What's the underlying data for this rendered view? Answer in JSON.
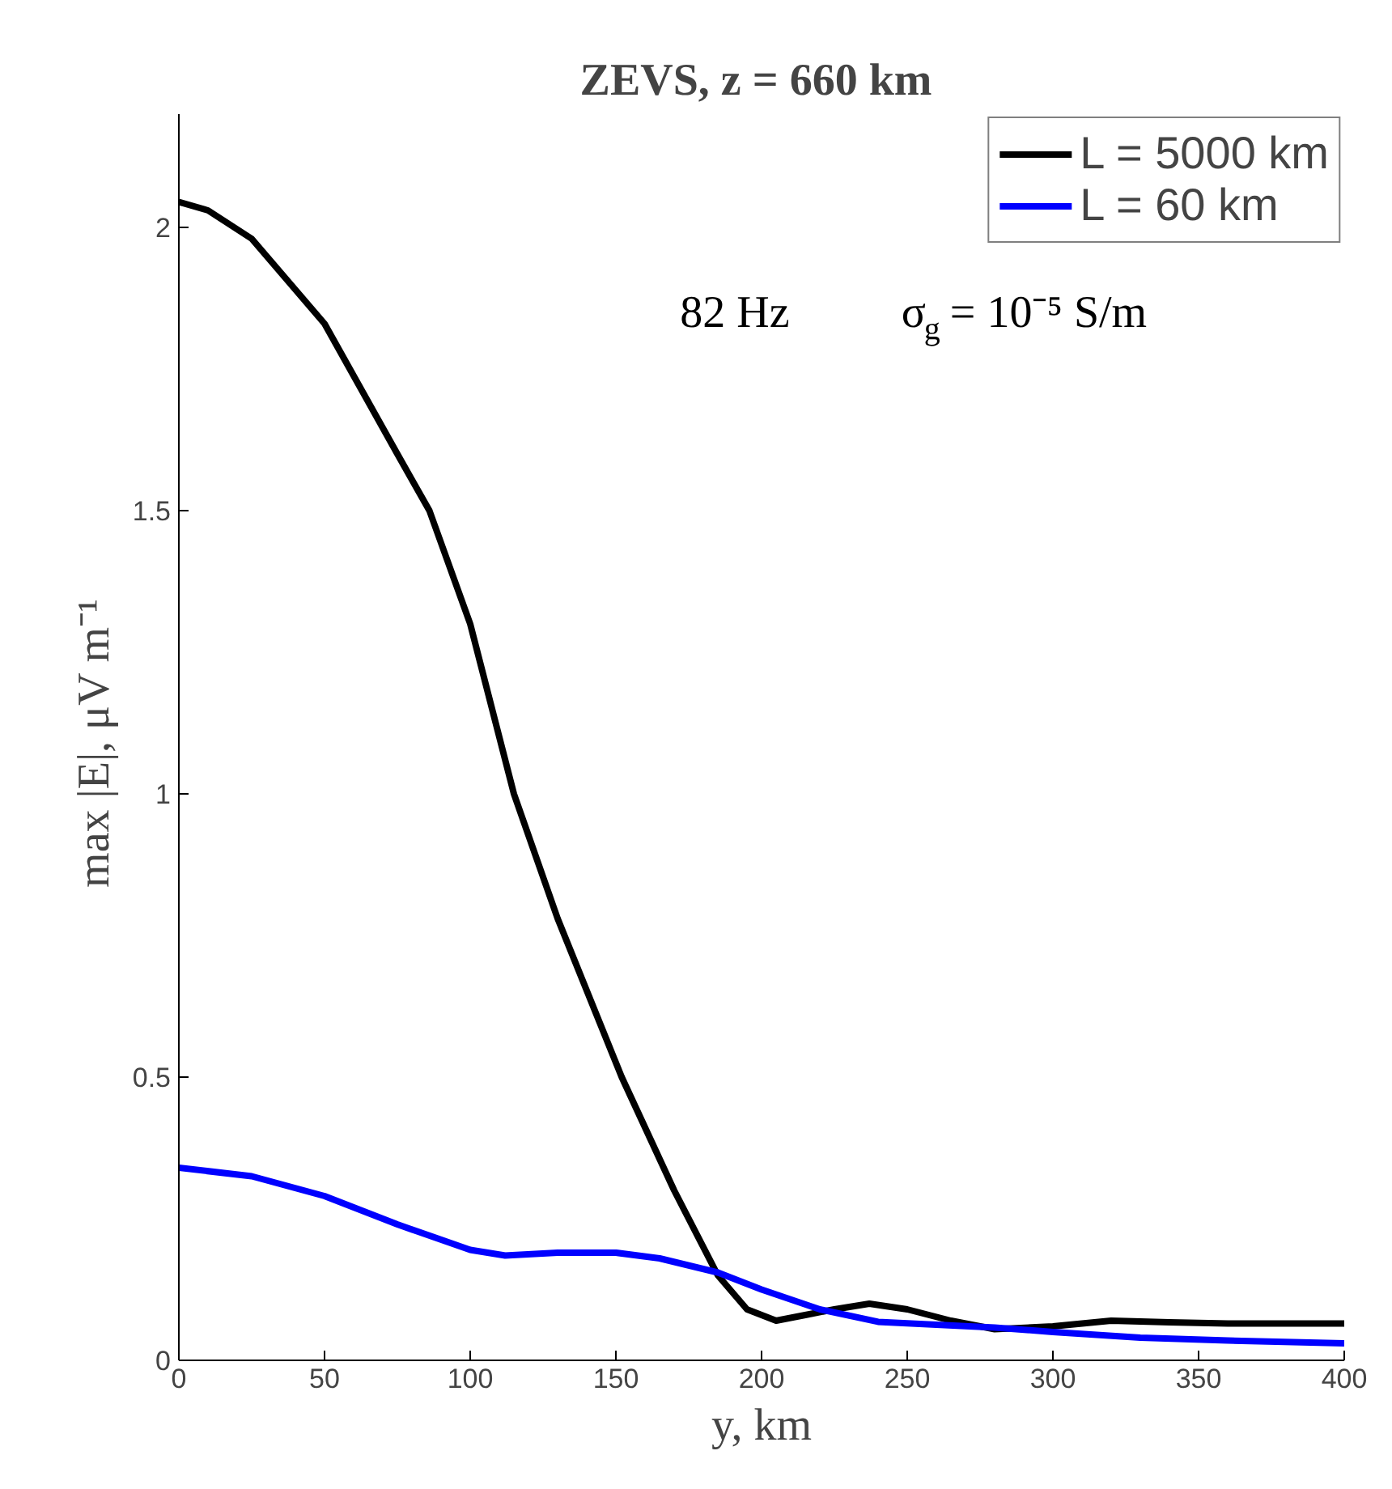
{
  "chart_data": {
    "type": "line",
    "title": "ZEVS,  z = 660 km",
    "xlabel": "y, km",
    "ylabel": "max |E|,  μV m⁻¹",
    "x": [
      0,
      10,
      25,
      50,
      75,
      86,
      100,
      115,
      130,
      152,
      170,
      185,
      195,
      205,
      215,
      225,
      237,
      250,
      265,
      280,
      300,
      320,
      340,
      360,
      400
    ],
    "series": [
      {
        "name": "L = 5000 km",
        "color": "#000000",
        "values": [
          2.045,
          2.03,
          1.98,
          1.83,
          1.6,
          1.5,
          1.3,
          1.0,
          0.78,
          0.5,
          0.3,
          0.15,
          0.09,
          0.07,
          0.08,
          0.09,
          0.1,
          0.09,
          0.07,
          0.055,
          0.06,
          0.07,
          0.067,
          0.065,
          0.065
        ]
      },
      {
        "name": "L = 60 km",
        "color": "#0000ff",
        "x": [
          0,
          25,
          50,
          75,
          100,
          112,
          130,
          150,
          165,
          185,
          200,
          220,
          240,
          260,
          280,
          300,
          330,
          360,
          400
        ],
        "values": [
          0.34,
          0.325,
          0.29,
          0.24,
          0.195,
          0.185,
          0.19,
          0.19,
          0.18,
          0.155,
          0.125,
          0.09,
          0.068,
          0.063,
          0.058,
          0.05,
          0.04,
          0.035,
          0.03
        ]
      }
    ],
    "annotations": [
      "82 Hz",
      "σ$_{g}$ = 10⁻⁵ S/m"
    ],
    "xlim": [
      0,
      400
    ],
    "xticks": [
      0,
      50,
      100,
      150,
      200,
      250,
      300,
      350,
      400
    ],
    "ylim": [
      0,
      2.2
    ],
    "yticks": [
      0,
      0.5,
      1,
      1.5,
      2
    ],
    "grid": false,
    "legend": "top right",
    "line_style": "solid",
    "marker": "none"
  }
}
